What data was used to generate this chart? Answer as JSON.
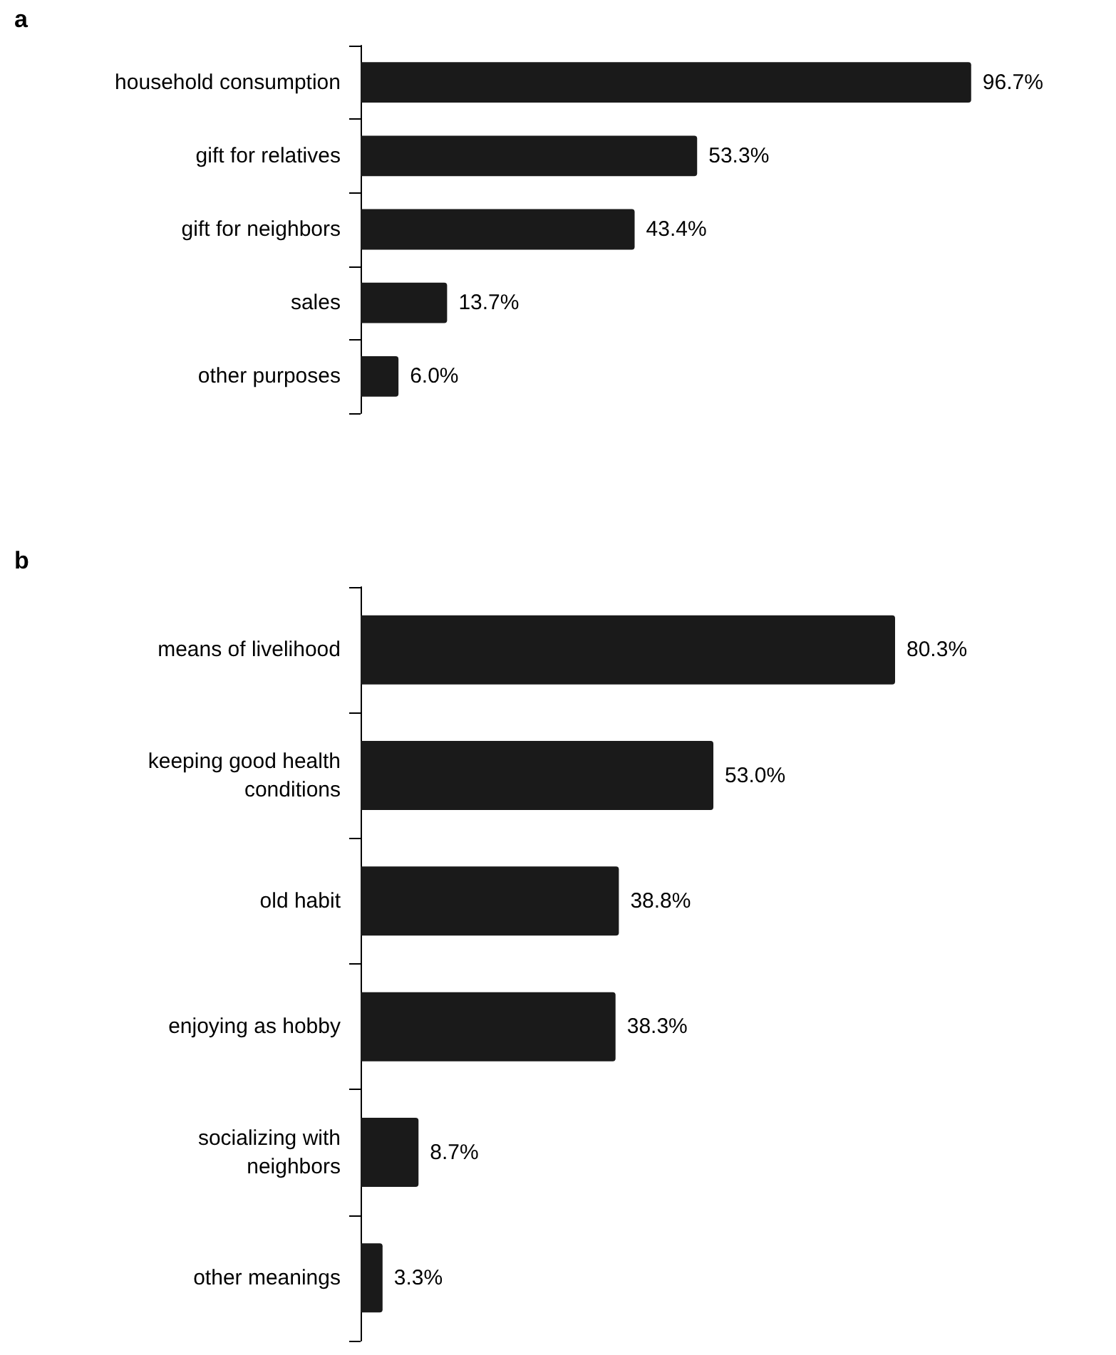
{
  "chart_data": [
    {
      "type": "bar",
      "title": "a",
      "orientation": "horizontal",
      "categories": [
        "household consumption",
        "gift for relatives",
        "gift for neighbors",
        "sales",
        "other purposes"
      ],
      "series": [
        {
          "color": "#1a1a1a",
          "values": [
            96.7,
            53.3,
            43.4,
            13.7,
            6.0
          ],
          "value_labels": [
            "96.7%",
            "53.3%",
            "43.4%",
            "13.7%",
            "6.0%"
          ]
        }
      ],
      "grid": false,
      "tick_labels": "y"
    },
    {
      "type": "bar",
      "title": "b",
      "orientation": "horizontal",
      "categories": [
        "means of livelihood",
        "keeping good health\nconditions",
        "old habit",
        "enjoying as hobby",
        "socializing with\nneighbors",
        "other meanings"
      ],
      "series": [
        {
          "color": "#1a1a1a",
          "values": [
            80.3,
            53.0,
            38.8,
            38.3,
            8.7,
            3.3
          ],
          "value_labels": [
            "80.3%",
            "53.0%",
            "38.8%",
            "38.3%",
            "8.7%",
            "3.3%"
          ]
        }
      ],
      "grid": false,
      "tick_labels": "y"
    }
  ]
}
